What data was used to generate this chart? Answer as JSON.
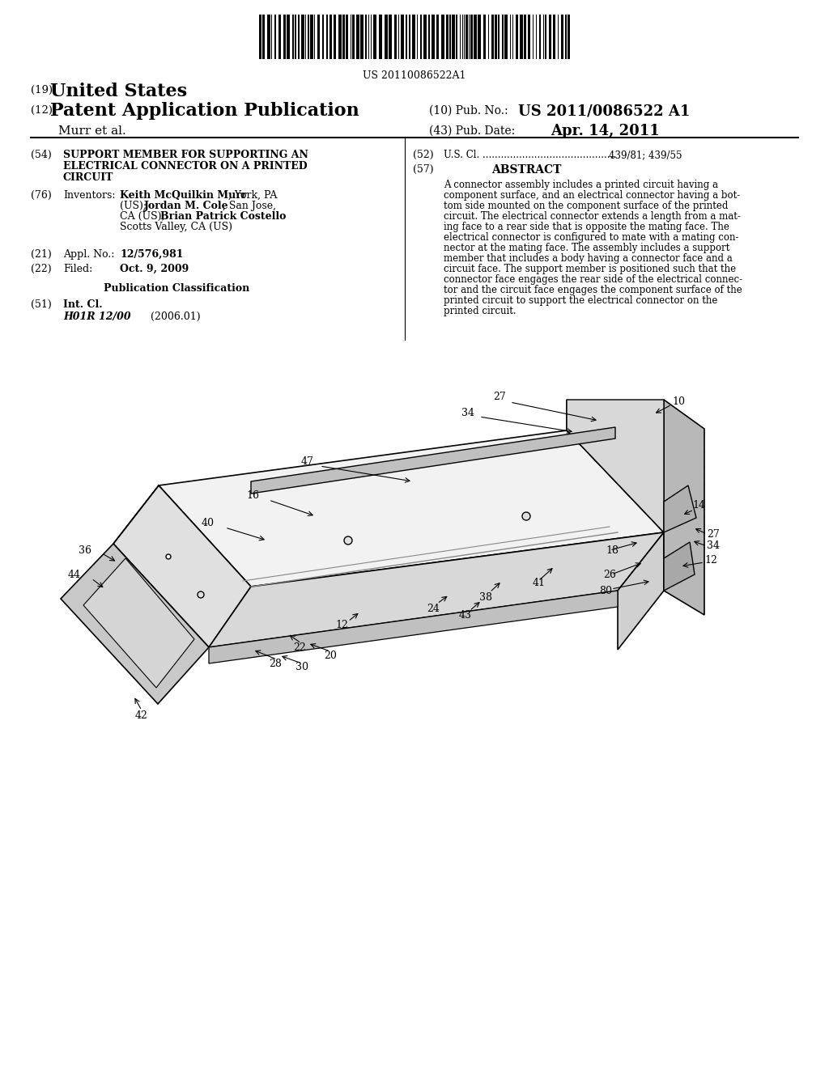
{
  "bg_color": "#ffffff",
  "barcode_text": "US 20110086522A1",
  "title_19": "(19) United States",
  "title_12": "(12) Patent Application Publication",
  "pub_no_label": "(10) Pub. No.:",
  "pub_no_value": "US 2011/0086522 A1",
  "author": "Murr et al.",
  "pub_date_label": "(43) Pub. Date:",
  "pub_date_value": "Apr. 14, 2011",
  "field54_label": "(54)",
  "field54_text": "SUPPORT MEMBER FOR SUPPORTING AN\nELECTRICAL CONNECTOR ON A PRINTED\nCIRCUIT",
  "field52_label": "(52)",
  "field52_text": "U.S. Cl. ................................................ 439/81; 439/55",
  "field57_label": "(57)",
  "field57_title": "ABSTRACT",
  "abstract_text": "A connector assembly includes a printed circuit having a component surface, and an electrical connector having a bottom side mounted on the component surface of the printed circuit. The electrical connector extends a length from a mating face to a rear side that is opposite the mating face. The electrical connector is configured to mate with a mating connector at the mating face. The assembly includes a support member that includes a body having a connector face and a circuit face. The support member is positioned such that the connector face engages the rear side of the electrical connector and the circuit face engages the component surface of the printed circuit to support the electrical connector on the printed circuit.",
  "field76_label": "(76)",
  "field76_text_label": "Inventors:",
  "field76_text": "Keith McQuilkin Murr, York, PA\n(US); Jordan M. Cole, San Jose,\nCA (US); Brian Patrick Costello,\nScotts Valley, CA (US)",
  "field21_label": "(21)",
  "field21_text_label": "Appl. No.:",
  "field21_value": "12/576,981",
  "field22_label": "(22)",
  "field22_text_label": "Filed:",
  "field22_value": "Oct. 9, 2009",
  "pub_class_title": "Publication Classification",
  "field51_label": "(51)",
  "field51_text_label": "Int. Cl.",
  "field51_class": "H01R 12/00",
  "field51_year": "(2006.01)",
  "diagram_labels": [
    "10",
    "12",
    "12",
    "14",
    "16",
    "18",
    "20",
    "22",
    "24",
    "26",
    "27",
    "27",
    "28",
    "30",
    "34",
    "34",
    "36",
    "38",
    "40",
    "41",
    "42",
    "43",
    "44",
    "47",
    "80"
  ]
}
